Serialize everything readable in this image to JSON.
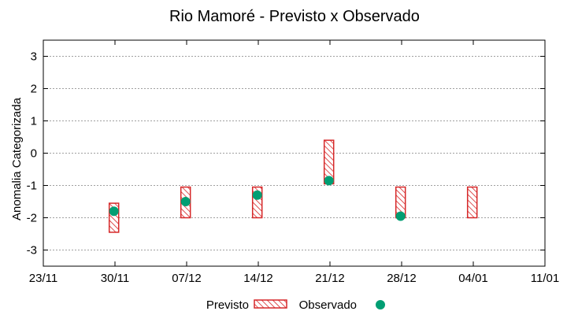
{
  "chart_data": {
    "type": "scatter",
    "title": "Rio Mamoré - Previsto x Observado",
    "xlabel": "",
    "ylabel": "Anomalia Categorizada",
    "ylim": [
      -3.5,
      3.5
    ],
    "y_ticks": [
      -3,
      -2,
      -1,
      0,
      1,
      2,
      3
    ],
    "x_tick_labels": [
      "23/11",
      "30/11",
      "07/12",
      "14/12",
      "21/12",
      "28/12",
      "04/01",
      "11/01"
    ],
    "x_dates": [
      -1,
      6,
      13,
      20,
      27,
      34,
      41,
      48
    ],
    "x_range": [
      -1,
      48
    ],
    "grid": true,
    "series": [
      {
        "name": "Previsto",
        "kind": "range-box",
        "points": [
          {
            "x": 5.9,
            "low": -2.45,
            "high": -1.55
          },
          {
            "x": 12.9,
            "low": -2.0,
            "high": -1.05
          },
          {
            "x": 19.9,
            "low": -2.0,
            "high": -1.05
          },
          {
            "x": 26.9,
            "low": -0.95,
            "high": 0.4
          },
          {
            "x": 33.9,
            "low": -2.0,
            "high": -1.05
          },
          {
            "x": 40.9,
            "low": -2.0,
            "high": -1.05
          }
        ]
      },
      {
        "name": "Observado",
        "kind": "point",
        "points": [
          {
            "x": 5.9,
            "y": -1.8
          },
          {
            "x": 12.9,
            "y": -1.5
          },
          {
            "x": 19.9,
            "y": -1.3
          },
          {
            "x": 26.9,
            "y": -0.85
          },
          {
            "x": 33.9,
            "y": -1.95
          }
        ]
      }
    ],
    "legend": {
      "position": "bottom",
      "items": [
        "Previsto",
        "Observado"
      ]
    },
    "colors": {
      "box_stroke": "#d62728",
      "box_hatch": "#d62728",
      "point_fill": "#009e73",
      "grid": "#a0a0a0"
    }
  }
}
